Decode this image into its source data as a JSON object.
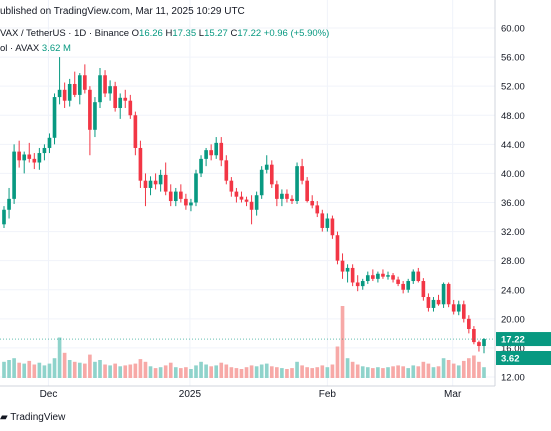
{
  "header": {
    "published": "ublished on TradingView.com, Mar 11, 2025 10:29 UTC",
    "symbol": "VAX / TetherUS · 1D · Binance",
    "open_label": "O",
    "open": "16.26",
    "high_label": "H",
    "high": "17.35",
    "low_label": "L",
    "low": "15.27",
    "close_label": "C",
    "close": "17.22",
    "change": "+0.96 (+5.90%)",
    "volume_label": "ol · AVAX",
    "volume": "3.62 M"
  },
  "footer": {
    "brand": "TradingView"
  },
  "colors": {
    "up": "#089981",
    "down": "#f23645",
    "up_vol": "#8fd3cb",
    "down_vol": "#f7a9a7",
    "grid": "#f0f3fa"
  },
  "chart_data": {
    "type": "candlestick",
    "x_ticks": [
      "Dec",
      "2025",
      "Feb",
      "Mar"
    ],
    "y_ticks": [
      "60.00",
      "56.00",
      "52.00",
      "48.00",
      "44.00",
      "40.00",
      "36.00",
      "32.00",
      "28.00",
      "24.00",
      "20.00",
      "16.00",
      "12.00"
    ],
    "ylim": [
      12,
      60
    ],
    "last_price_label": "17.22",
    "last_volume_label": "3.62",
    "candles": [
      [
        33.0,
        35.5,
        32.5,
        35.0
      ],
      [
        35.0,
        38.0,
        33.8,
        36.5
      ],
      [
        36.5,
        44.0,
        35.8,
        43.0
      ],
      [
        43.0,
        44.5,
        40.8,
        41.8
      ],
      [
        41.8,
        43.0,
        40.0,
        42.6
      ],
      [
        42.6,
        44.2,
        41.5,
        42.0
      ],
      [
        42.0,
        42.8,
        40.6,
        41.5
      ],
      [
        41.5,
        43.5,
        40.5,
        42.8
      ],
      [
        42.8,
        44.0,
        41.8,
        43.5
      ],
      [
        43.5,
        45.5,
        42.8,
        44.9
      ],
      [
        44.9,
        51.0,
        44.0,
        50.5
      ],
      [
        50.5,
        56.0,
        49.5,
        51.5
      ],
      [
        51.5,
        52.5,
        49.0,
        50.0
      ],
      [
        50.0,
        53.0,
        49.2,
        52.3
      ],
      [
        52.3,
        54.0,
        50.5,
        50.8
      ],
      [
        50.8,
        53.8,
        49.5,
        53.5
      ],
      [
        53.5,
        55.0,
        51.0,
        51.5
      ],
      [
        51.5,
        52.0,
        42.5,
        46.0
      ],
      [
        46.0,
        50.5,
        45.0,
        49.8
      ],
      [
        49.8,
        54.5,
        49.0,
        53.5
      ],
      [
        53.5,
        54.2,
        50.5,
        51.0
      ],
      [
        51.0,
        52.8,
        50.0,
        52.0
      ],
      [
        52.0,
        52.6,
        48.5,
        49.0
      ],
      [
        49.0,
        51.0,
        47.5,
        50.4
      ],
      [
        50.4,
        51.5,
        49.0,
        50.0
      ],
      [
        50.0,
        50.8,
        47.5,
        48.0
      ],
      [
        48.0,
        48.5,
        42.5,
        43.5
      ],
      [
        43.5,
        44.5,
        38.0,
        39.0
      ],
      [
        39.0,
        40.0,
        35.5,
        38.0
      ],
      [
        38.0,
        39.6,
        37.0,
        39.0
      ],
      [
        39.0,
        40.0,
        37.8,
        38.5
      ],
      [
        38.5,
        40.5,
        37.5,
        39.8
      ],
      [
        39.8,
        41.5,
        37.0,
        37.5
      ],
      [
        37.5,
        38.5,
        35.5,
        36.2
      ],
      [
        36.2,
        38.0,
        35.5,
        37.5
      ],
      [
        37.5,
        38.5,
        36.0,
        36.5
      ],
      [
        36.5,
        37.2,
        35.0,
        35.6
      ],
      [
        35.6,
        36.5,
        34.8,
        36.0
      ],
      [
        36.0,
        40.5,
        35.5,
        40.0
      ],
      [
        40.0,
        42.5,
        39.5,
        42.0
      ],
      [
        42.0,
        43.5,
        41.0,
        43.2
      ],
      [
        43.2,
        44.0,
        41.8,
        42.5
      ],
      [
        42.5,
        45.0,
        42.0,
        44.2
      ],
      [
        44.2,
        45.0,
        41.0,
        41.8
      ],
      [
        41.8,
        42.5,
        38.5,
        39.0
      ],
      [
        39.0,
        39.5,
        36.8,
        37.5
      ],
      [
        37.5,
        38.0,
        36.0,
        36.8
      ],
      [
        36.8,
        37.5,
        36.0,
        36.4
      ],
      [
        36.4,
        36.8,
        35.5,
        36.1
      ],
      [
        36.1,
        37.0,
        33.0,
        35.0
      ],
      [
        35.0,
        37.5,
        34.2,
        37.0
      ],
      [
        37.0,
        41.0,
        36.5,
        40.5
      ],
      [
        40.5,
        42.5,
        40.0,
        41.2
      ],
      [
        41.2,
        41.8,
        38.0,
        38.5
      ],
      [
        38.5,
        39.0,
        35.5,
        36.5
      ],
      [
        36.5,
        37.8,
        35.5,
        37.2
      ],
      [
        37.2,
        37.8,
        36.0,
        36.5
      ],
      [
        36.5,
        37.0,
        35.8,
        36.2
      ],
      [
        36.2,
        41.5,
        35.8,
        41.0
      ],
      [
        41.0,
        42.0,
        38.5,
        39.0
      ],
      [
        39.0,
        39.5,
        36.0,
        36.2
      ],
      [
        36.2,
        37.0,
        35.2,
        35.6
      ],
      [
        35.6,
        36.2,
        34.0,
        34.5
      ],
      [
        34.5,
        35.0,
        32.0,
        32.5
      ],
      [
        32.5,
        34.5,
        32.0,
        33.8
      ],
      [
        33.8,
        34.2,
        31.0,
        31.5
      ],
      [
        31.5,
        32.0,
        27.5,
        28.0
      ],
      [
        28.0,
        29.0,
        25.5,
        26.5
      ],
      [
        26.5,
        27.5,
        25.0,
        27.0
      ],
      [
        27.0,
        27.5,
        24.5,
        25.0
      ],
      [
        25.0,
        26.0,
        23.8,
        24.5
      ],
      [
        24.5,
        25.5,
        24.0,
        25.2
      ],
      [
        25.2,
        26.5,
        24.8,
        26.0
      ],
      [
        26.0,
        26.8,
        25.2,
        25.5
      ],
      [
        25.5,
        26.5,
        25.0,
        26.2
      ],
      [
        26.2,
        26.8,
        25.5,
        25.8
      ],
      [
        25.8,
        26.5,
        25.4,
        26.0
      ],
      [
        26.0,
        26.3,
        25.0,
        25.4
      ],
      [
        25.4,
        25.8,
        24.5,
        24.8
      ],
      [
        24.8,
        25.2,
        23.5,
        24.0
      ],
      [
        24.0,
        25.5,
        23.6,
        25.2
      ],
      [
        25.2,
        26.8,
        24.8,
        26.5
      ],
      [
        26.5,
        27.0,
        25.0,
        25.2
      ],
      [
        25.2,
        25.6,
        22.5,
        23.0
      ],
      [
        23.0,
        23.5,
        21.0,
        21.5
      ],
      [
        21.5,
        23.0,
        21.0,
        22.6
      ],
      [
        22.6,
        23.3,
        21.8,
        22.0
      ],
      [
        22.0,
        25.0,
        21.5,
        24.8
      ],
      [
        24.8,
        25.0,
        21.6,
        22.0
      ],
      [
        22.0,
        22.6,
        20.6,
        21.0
      ],
      [
        21.0,
        22.5,
        20.5,
        22.0
      ],
      [
        22.0,
        22.5,
        19.5,
        20.0
      ],
      [
        20.0,
        20.5,
        18.0,
        18.6
      ],
      [
        18.6,
        19.0,
        16.5,
        16.8
      ],
      [
        16.8,
        17.0,
        15.5,
        16.26
      ],
      [
        16.26,
        17.35,
        15.27,
        17.22
      ]
    ],
    "volumes": [
      18,
      20,
      22,
      17,
      16,
      19,
      15,
      17,
      14,
      16,
      22,
      45,
      28,
      20,
      18,
      17,
      16,
      26,
      18,
      20,
      15,
      14,
      16,
      13,
      14,
      15,
      16,
      21,
      18,
      13,
      11,
      12,
      14,
      17,
      12,
      11,
      12,
      10,
      14,
      18,
      15,
      13,
      14,
      17,
      15,
      12,
      11,
      10,
      12,
      14,
      13,
      15,
      16,
      13,
      12,
      11,
      10,
      11,
      18,
      14,
      12,
      11,
      12,
      14,
      12,
      15,
      35,
      80,
      22,
      18,
      15,
      13,
      12,
      11,
      12,
      11,
      12,
      13,
      14,
      13,
      11,
      14,
      13,
      18,
      16,
      12,
      13,
      22,
      20,
      16,
      14,
      19,
      22,
      25,
      18,
      12
    ]
  }
}
